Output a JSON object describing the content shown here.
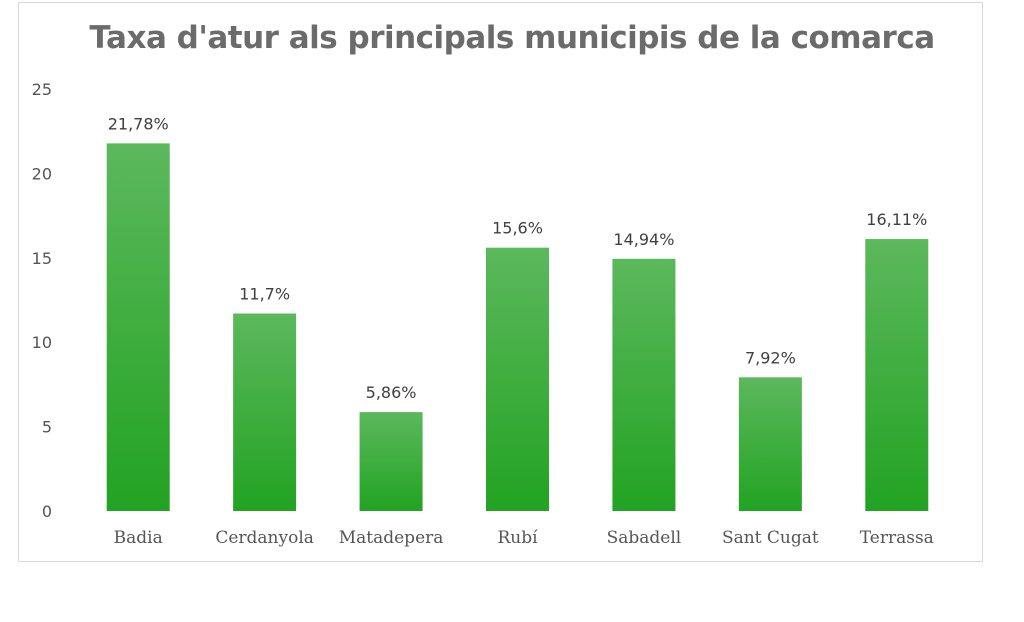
{
  "chart_data": {
    "type": "bar",
    "title": "Taxa d'atur als principals municipis de la comarca",
    "xlabel": "",
    "ylabel": "",
    "categories": [
      "Badia",
      "Cerdanyola",
      "Matadepera",
      "Rubí",
      "Sabadell",
      "Sant Cugat",
      "Terrassa"
    ],
    "values": [
      21.78,
      11.7,
      5.86,
      15.6,
      14.94,
      7.92,
      16.11
    ],
    "data_labels": [
      "21,78%",
      "11,7%",
      "5,86%",
      "15,6%",
      "14,94%",
      "7,92%",
      "16,11%"
    ],
    "ylim": [
      0,
      25
    ],
    "yticks": [
      0,
      5,
      10,
      15,
      20,
      25
    ],
    "grid": false,
    "legend": "none",
    "bar_color_top": "#5cb85c",
    "bar_color_bottom": "#22a322"
  }
}
